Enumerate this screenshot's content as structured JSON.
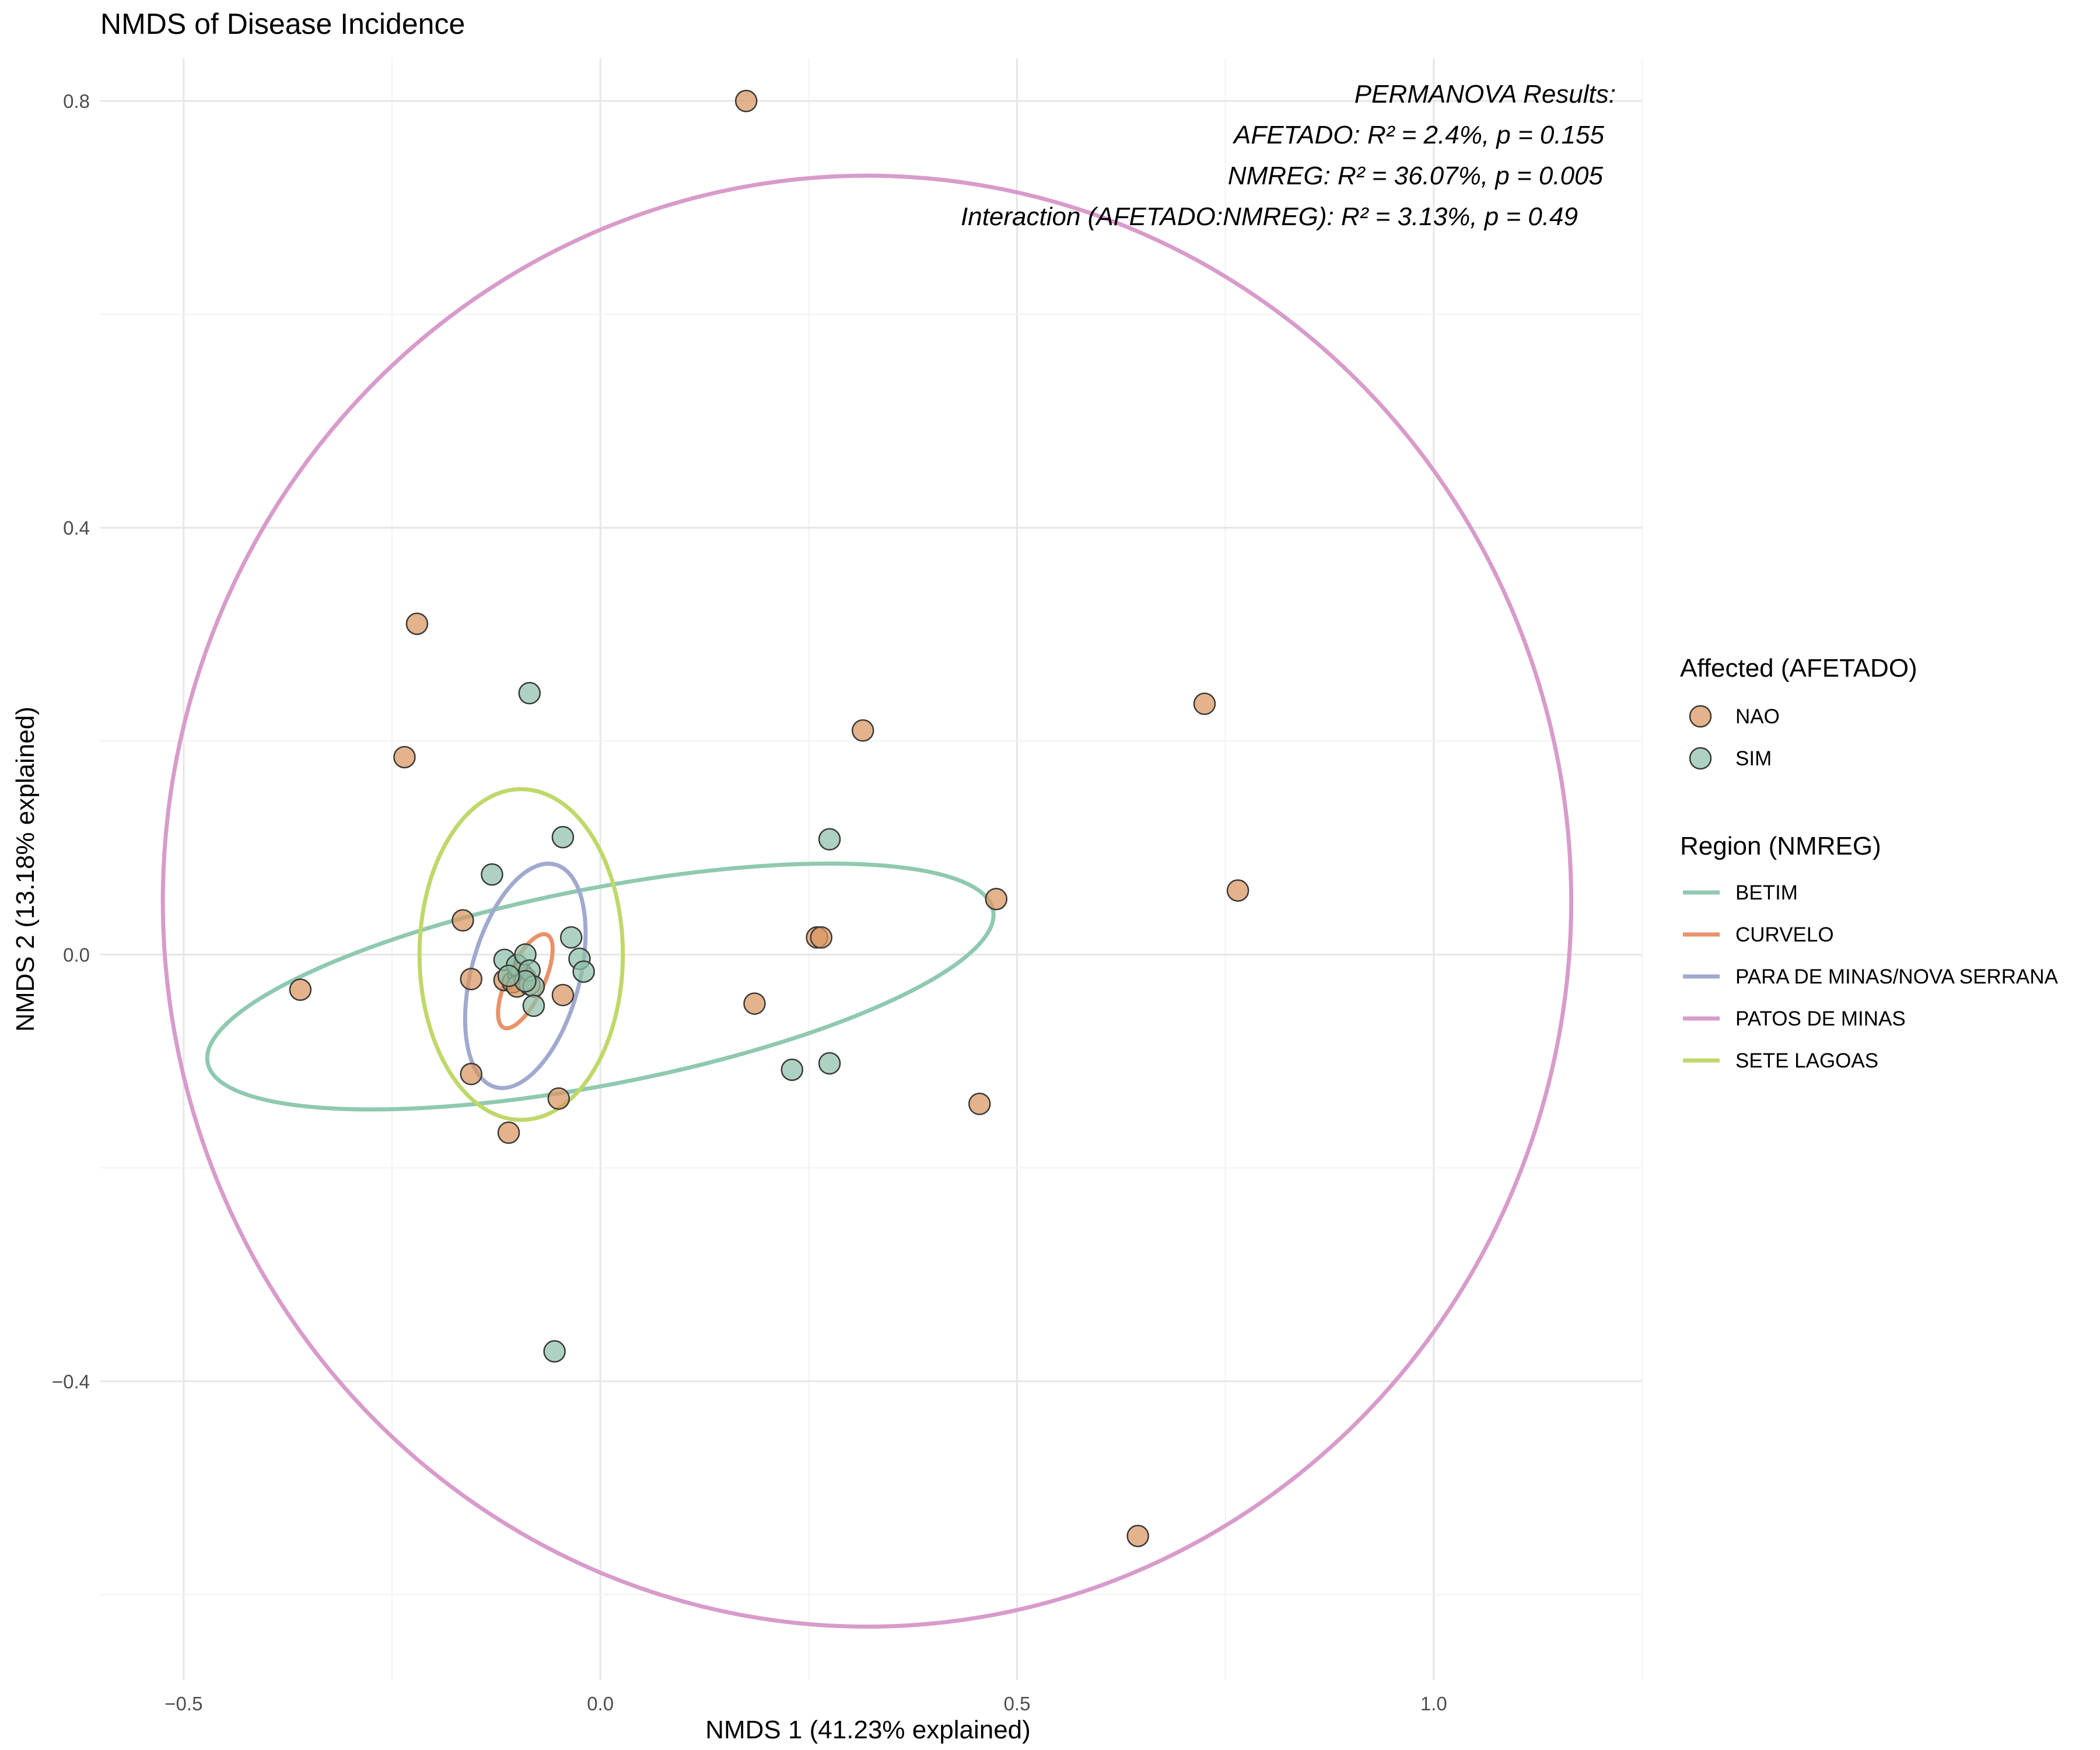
{
  "chart_data": {
    "type": "scatter",
    "title": "NMDS of Disease Incidence",
    "xlabel": "NMDS 1 (41.23% explained)",
    "ylabel": "NMDS 2 (13.18% explained)",
    "xlim": [
      -0.6,
      1.25
    ],
    "ylim": [
      -0.68,
      0.84
    ],
    "x_ticks": [
      -0.5,
      0.0,
      0.5,
      1.0
    ],
    "x_tick_labels": [
      "−0.5",
      "0.0",
      "0.5",
      "1.0"
    ],
    "y_ticks": [
      -0.4,
      0.0,
      0.4,
      0.8
    ],
    "y_tick_labels": [
      "−0.4",
      "0.0",
      "0.4",
      "0.8"
    ],
    "grid": true,
    "annotations": [
      "PERMANOVA Results:",
      "AFETADO: R² = 2.4%, p = 0.155",
      "NMREG: R² = 36.07%, p = 0.005",
      "Interaction (AFETADO:NMREG): R² = 3.13%, p = 0.49"
    ],
    "legend_position": "right",
    "point_legend": {
      "title": "Affected (AFETADO)",
      "items": [
        {
          "label": "NAO",
          "color": "#D9955E"
        },
        {
          "label": "SIM",
          "color": "#8FC1A9"
        }
      ]
    },
    "ellipse_legend": {
      "title": "Region (NMREG)",
      "items": [
        {
          "label": "BETIM",
          "color": "#8FC9B0"
        },
        {
          "label": "CURVELO",
          "color": "#E8926A"
        },
        {
          "label": "PARA DE MINAS/NOVA SERRANA",
          "color": "#A1A9CF"
        },
        {
          "label": "PATOS DE MINAS",
          "color": "#D89BCB"
        },
        {
          "label": "SETE LAGOAS",
          "color": "#BFD86A"
        }
      ]
    },
    "ellipses": [
      {
        "region": "PATOS DE MINAS",
        "cx": 0.32,
        "cy": 0.05,
        "rx": 0.845,
        "ry": 0.68,
        "angle_deg": 0
      },
      {
        "region": "BETIM",
        "cx": 0.0,
        "cy": -0.03,
        "rx": 0.48,
        "ry": 0.092,
        "angle_deg": -11
      },
      {
        "region": "SETE LAGOAS",
        "cx": -0.095,
        "cy": 0.0,
        "rx": 0.122,
        "ry": 0.155,
        "angle_deg": 0
      },
      {
        "region": "PARA DE MINAS/NOVA SERRANA",
        "cx": -0.09,
        "cy": -0.02,
        "rx": 0.065,
        "ry": 0.108,
        "angle_deg": 15
      },
      {
        "region": "CURVELO",
        "cx": -0.09,
        "cy": -0.025,
        "rx": 0.022,
        "ry": 0.048,
        "angle_deg": 25
      }
    ],
    "series": [
      {
        "name": "NAO",
        "points": [
          [
            0.175,
            0.8
          ],
          [
            -0.22,
            0.31
          ],
          [
            -0.235,
            0.185
          ],
          [
            0.315,
            0.21
          ],
          [
            0.725,
            0.235
          ],
          [
            0.765,
            0.06
          ],
          [
            0.475,
            0.052
          ],
          [
            0.26,
            0.016
          ],
          [
            0.265,
            0.016
          ],
          [
            -0.165,
            0.032
          ],
          [
            -0.155,
            -0.023
          ],
          [
            -0.36,
            -0.033
          ],
          [
            0.185,
            -0.046
          ],
          [
            -0.045,
            -0.038
          ],
          [
            -0.155,
            -0.112
          ],
          [
            -0.05,
            -0.135
          ],
          [
            -0.11,
            -0.167
          ],
          [
            0.455,
            -0.14
          ],
          [
            0.645,
            -0.545
          ],
          [
            -0.115,
            -0.024
          ],
          [
            -0.105,
            -0.026
          ],
          [
            -0.098,
            -0.02
          ],
          [
            -0.095,
            -0.017
          ],
          [
            -0.09,
            -0.022
          ],
          [
            -0.1,
            -0.03
          ],
          [
            -0.085,
            -0.028
          ]
        ]
      },
      {
        "name": "SIM",
        "points": [
          [
            -0.085,
            0.245
          ],
          [
            -0.045,
            0.11
          ],
          [
            0.275,
            0.108
          ],
          [
            -0.13,
            0.075
          ],
          [
            -0.035,
            0.016
          ],
          [
            -0.025,
            -0.004
          ],
          [
            -0.02,
            -0.016
          ],
          [
            -0.115,
            -0.005
          ],
          [
            -0.1,
            -0.01
          ],
          [
            -0.09,
            0.0
          ],
          [
            -0.085,
            -0.015
          ],
          [
            -0.08,
            -0.03
          ],
          [
            -0.08,
            -0.048
          ],
          [
            0.23,
            -0.108
          ],
          [
            0.275,
            -0.102
          ],
          [
            -0.055,
            -0.372
          ],
          [
            -0.09,
            -0.025
          ],
          [
            -0.11,
            -0.02
          ]
        ]
      }
    ]
  }
}
